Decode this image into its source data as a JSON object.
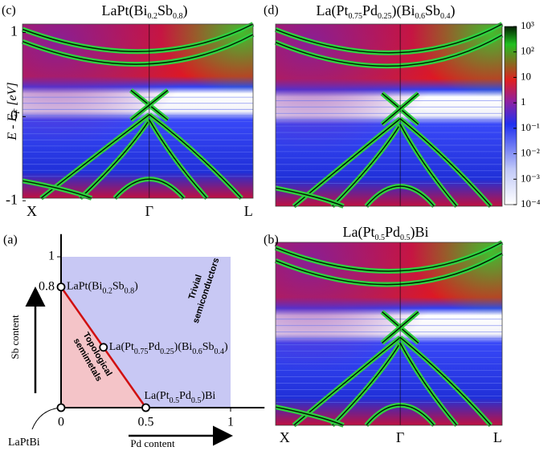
{
  "chart_data": [
    {
      "type": "heatmap",
      "panel": "(c)",
      "title": [
        "LaPt(Bi",
        "0.2",
        "Sb",
        "0.8",
        ")"
      ],
      "ylabel": [
        "E - E",
        "F",
        " [eV]"
      ],
      "categories": [
        "X",
        "Γ",
        "L"
      ],
      "ylim": [
        -0.97,
        1.1
      ],
      "yticks": [
        -1,
        0,
        1
      ]
    },
    {
      "type": "heatmap",
      "panel": "(d)",
      "title": [
        "La(Pt",
        "0.75",
        "Pd",
        "0.25",
        ")(Bi",
        "0.6",
        "Sb",
        "0.4",
        ")"
      ],
      "colorbar": {
        "scale": "log",
        "clim": [
          0.0001,
          1000
        ],
        "ticks": [
          {
            "value": 1000,
            "label": "10³"
          },
          {
            "value": 100,
            "label": "10²"
          },
          10,
          1,
          {
            "value": 0.1,
            "label": "10⁻¹"
          },
          {
            "value": 0.01,
            "label": "10⁻²"
          },
          {
            "value": 0.001,
            "label": "10⁻³"
          },
          {
            "value": 0.0001,
            "label": "10⁻⁴"
          }
        ]
      }
    },
    {
      "type": "heatmap",
      "panel": "(b)",
      "title": [
        "La(Pt",
        "0.5",
        "Pd",
        "0.5",
        ")Bi"
      ],
      "categories": [
        "X",
        "Γ",
        "L"
      ]
    },
    {
      "type": "phase",
      "panel": "(a)",
      "xlabel": "Pd content",
      "ylabel": "Sb content",
      "xlim": [
        0,
        1.2
      ],
      "ylim": [
        0,
        1.15
      ],
      "xticks": [
        0,
        0.5,
        1
      ],
      "yticks": [
        0.8,
        1
      ],
      "regions": [
        [
          "Trivial",
          "semiconductors"
        ],
        [
          "Topological",
          "semimetals"
        ]
      ],
      "points": [
        {
          "label": [
            "LaPtBi"
          ],
          "x": 0,
          "y": 0
        },
        {
          "label": [
            "LaPt(Bi",
            "0.2",
            "Sb",
            "0.8",
            ")"
          ],
          "x": 0,
          "y": 0.8
        },
        {
          "label": [
            "La(Pt",
            "0.75",
            "Pd",
            "0.25",
            ")(Bi",
            "0.6",
            "Sb",
            "0.4",
            ")"
          ],
          "x": 0.25,
          "y": 0.4
        },
        {
          "label": [
            "La(Pt",
            "0.5",
            "Pd",
            "0.5",
            ")Bi"
          ],
          "x": 0.5,
          "y": 0
        }
      ]
    }
  ]
}
